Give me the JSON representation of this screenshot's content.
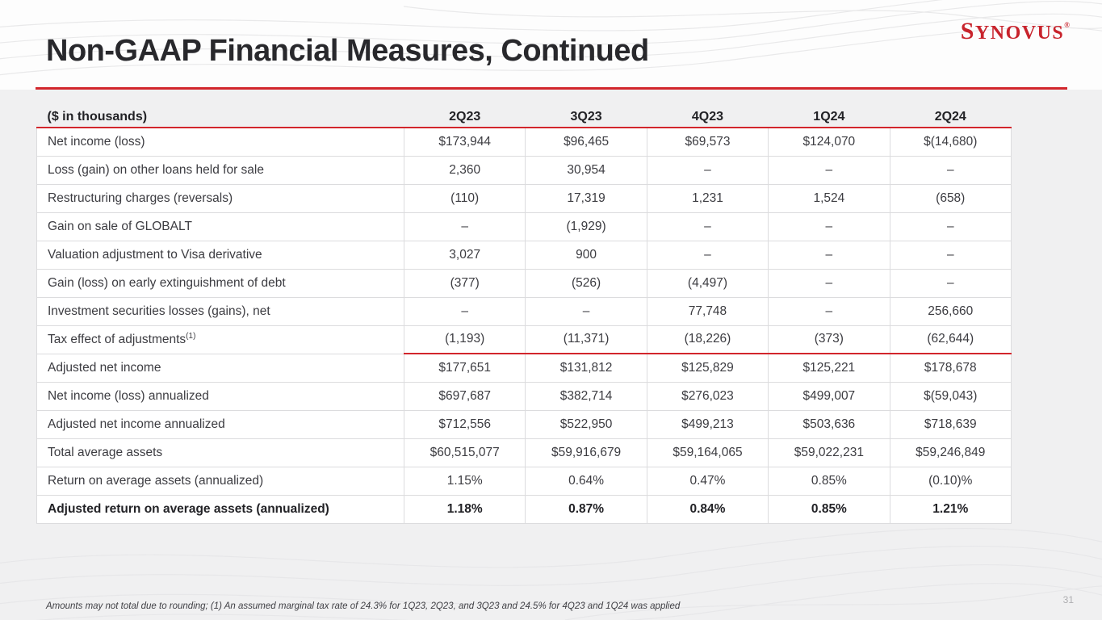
{
  "slide": {
    "title": "Non-GAAP Financial Measures, Continued",
    "logo_first_letter": "S",
    "logo_rest": "YNOVUS",
    "logo_trademark": "®",
    "footnote": "Amounts may not total due to rounding; (1) An assumed marginal tax rate of 24.3% for 1Q23, 2Q23, and 3Q23 and 24.5% for 4Q23 and 1Q24 was applied",
    "page_number": "31"
  },
  "colors": {
    "accent_red": "#d2262c",
    "logo_red": "#c8232c",
    "page_background": "#f0f0f1",
    "table_border": "#dcdcde",
    "title_text": "#28282c"
  },
  "table": {
    "unit_label": "($ in thousands)",
    "columns": [
      "2Q23",
      "3Q23",
      "4Q23",
      "1Q24",
      "2Q24"
    ],
    "rows": [
      {
        "label": "Net income (loss)",
        "values": [
          "$173,944",
          "$96,465",
          "$69,573",
          "$124,070",
          "$(14,680)"
        ]
      },
      {
        "label": "Loss (gain) on other loans held for sale",
        "values": [
          "2,360",
          "30,954",
          "–",
          "–",
          "–"
        ]
      },
      {
        "label": "Restructuring charges (reversals)",
        "values": [
          "(110)",
          "17,319",
          "1,231",
          "1,524",
          "(658)"
        ]
      },
      {
        "label": "Gain on sale of GLOBALT",
        "values": [
          "–",
          "(1,929)",
          "–",
          "–",
          "–"
        ]
      },
      {
        "label": "Valuation adjustment to Visa derivative",
        "values": [
          "3,027",
          "900",
          "–",
          "–",
          "–"
        ]
      },
      {
        "label": "Gain (loss) on early extinguishment of debt",
        "values": [
          "(377)",
          "(526)",
          "(4,497)",
          "–",
          "–"
        ]
      },
      {
        "label": "Investment securities losses (gains), net",
        "values": [
          "–",
          "–",
          "77,748",
          "–",
          "256,660"
        ]
      },
      {
        "label": "Tax effect of adjustments",
        "label_superscript": "(1)",
        "red_rule_below": true,
        "values": [
          "(1,193)",
          "(11,371)",
          "(18,226)",
          "(373)",
          "(62,644)"
        ]
      },
      {
        "label": "Adjusted net income",
        "values": [
          "$177,651",
          "$131,812",
          "$125,829",
          "$125,221",
          "$178,678"
        ]
      },
      {
        "label": "Net income (loss) annualized",
        "values": [
          "$697,687",
          "$382,714",
          "$276,023",
          "$499,007",
          "$(59,043)"
        ]
      },
      {
        "label": "Adjusted net income annualized",
        "values": [
          "$712,556",
          "$522,950",
          "$499,213",
          "$503,636",
          "$718,639"
        ]
      },
      {
        "label": "Total average assets",
        "values": [
          "$60,515,077",
          "$59,916,679",
          "$59,164,065",
          "$59,022,231",
          "$59,246,849"
        ]
      },
      {
        "label": "Return on average assets (annualized)",
        "values": [
          "1.15%",
          "0.64%",
          "0.47%",
          "0.85%",
          "(0.10)%"
        ]
      },
      {
        "label": "Adjusted return on average assets (annualized)",
        "bold": true,
        "values": [
          "1.18%",
          "0.87%",
          "0.84%",
          "0.85%",
          "1.21%"
        ]
      }
    ]
  }
}
